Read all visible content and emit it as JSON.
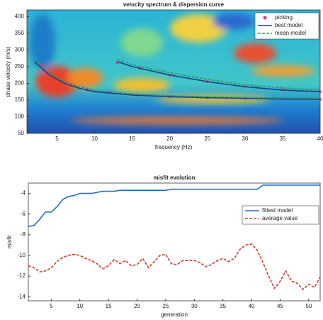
{
  "chart_data": [
    {
      "type": "line",
      "title": "velocity spectrum & dispersion curve",
      "xlabel": "frequency (Hz)",
      "ylabel": "phase velocity (m/s)",
      "xlim": [
        1,
        40
      ],
      "xticks": [
        5,
        10,
        15,
        20,
        25,
        30,
        35,
        40
      ],
      "ylim": [
        50,
        420
      ],
      "yticks": [
        50,
        100,
        150,
        200,
        250,
        300,
        350,
        400
      ],
      "legend": "upper right",
      "series": [
        {
          "name": "picking",
          "color": "#d0408a",
          "marker": "o",
          "style": "none",
          "x": [
            3,
            6,
            9,
            12,
            15,
            20,
            25,
            30,
            35,
            40,
            null,
            13,
            16,
            20,
            25,
            30,
            35,
            40
          ],
          "values": [
            255,
            200,
            180,
            172,
            166,
            160,
            157,
            155,
            153,
            152,
            null,
            262,
            245,
            225,
            205,
            190,
            180,
            175
          ]
        },
        {
          "name": "best model",
          "color": "#1a3f8a",
          "style": "solid",
          "x": [
            2,
            4,
            6,
            8,
            10,
            15,
            20,
            25,
            30,
            35,
            40,
            null,
            13,
            15,
            20,
            25,
            30,
            35,
            40
          ],
          "values": [
            265,
            225,
            200,
            185,
            175,
            165,
            160,
            157,
            155,
            153,
            152,
            null,
            265,
            250,
            225,
            205,
            190,
            180,
            175
          ]
        },
        {
          "name": "mean model",
          "color": "#2f9a5a",
          "style": "dashed",
          "x": [
            2,
            4,
            6,
            8,
            10,
            15,
            20,
            25,
            30,
            35,
            40,
            null,
            13,
            15,
            20,
            25,
            30,
            35,
            40
          ],
          "values": [
            270,
            230,
            205,
            190,
            180,
            168,
            163,
            160,
            158,
            156,
            155,
            null,
            272,
            256,
            232,
            212,
            196,
            186,
            180
          ]
        }
      ]
    },
    {
      "type": "line",
      "title": "misfit evolution",
      "xlabel": "generation",
      "ylabel": "misfit",
      "xlim": [
        1,
        52
      ],
      "xticks": [
        5,
        10,
        15,
        20,
        25,
        30,
        35,
        40,
        45,
        50
      ],
      "ylim": [
        -14.4,
        -3
      ],
      "yticks": [
        -14,
        -12,
        -10,
        -8,
        -6,
        -4
      ],
      "legend": "center right",
      "series": [
        {
          "name": "fittest model",
          "color": "#1f6fc8",
          "style": "solid",
          "x": [
            1,
            2,
            3,
            4,
            5,
            6,
            7,
            8,
            9,
            10,
            11,
            12,
            13,
            14,
            15,
            16,
            17,
            18,
            19,
            20,
            21,
            22,
            23,
            24,
            25,
            26,
            27,
            28,
            29,
            30,
            31,
            32,
            33,
            34,
            35,
            36,
            37,
            38,
            39,
            40,
            41,
            42,
            43,
            44,
            45,
            46,
            47,
            48,
            49,
            50,
            51,
            52
          ],
          "values": [
            -7.2,
            -7.1,
            -6.5,
            -5.8,
            -5.8,
            -5.3,
            -4.6,
            -4.3,
            -4.2,
            -4.0,
            -4.0,
            -4.0,
            -3.9,
            -3.8,
            -3.8,
            -3.8,
            -3.7,
            -3.7,
            -3.7,
            -3.7,
            -3.7,
            -3.7,
            -3.7,
            -3.7,
            -3.7,
            -3.6,
            -3.6,
            -3.6,
            -3.6,
            -3.6,
            -3.6,
            -3.6,
            -3.6,
            -3.6,
            -3.6,
            -3.6,
            -3.6,
            -3.6,
            -3.6,
            -3.6,
            -3.6,
            -3.2,
            -3.2,
            -3.2,
            -3.2,
            -3.2,
            -3.2,
            -3.2,
            -3.2,
            -3.2,
            -3.2,
            -3.2
          ]
        },
        {
          "name": "average value",
          "color": "#c8402a",
          "style": "dashed",
          "x": [
            1,
            2,
            3,
            4,
            5,
            6,
            7,
            8,
            9,
            10,
            11,
            12,
            13,
            14,
            15,
            16,
            17,
            18,
            19,
            20,
            21,
            22,
            23,
            24,
            25,
            26,
            27,
            28,
            29,
            30,
            31,
            32,
            33,
            34,
            35,
            36,
            37,
            38,
            39,
            40,
            41,
            42,
            43,
            44,
            45,
            46,
            47,
            48,
            49,
            50,
            51,
            52
          ],
          "values": [
            -11,
            -11.2,
            -11.6,
            -11.5,
            -11.2,
            -10.6,
            -10.2,
            -10,
            -9.9,
            -10,
            -10.3,
            -10.5,
            -10.8,
            -11.3,
            -11,
            -10.4,
            -10.8,
            -10.5,
            -11,
            -10.9,
            -10.3,
            -11.2,
            -10.6,
            -10,
            -9.9,
            -10.8,
            -10.9,
            -10.5,
            -10.5,
            -10.5,
            -10.7,
            -11.1,
            -10.9,
            -10.5,
            -10.3,
            -10.6,
            -10.3,
            -9.4,
            -9,
            -8.9,
            -9.5,
            -10.7,
            -12,
            -13.2,
            -12.5,
            -11.5,
            -12.5,
            -12.7,
            -13.3,
            -12.8,
            -13.1,
            -12.1
          ]
        }
      ]
    }
  ]
}
